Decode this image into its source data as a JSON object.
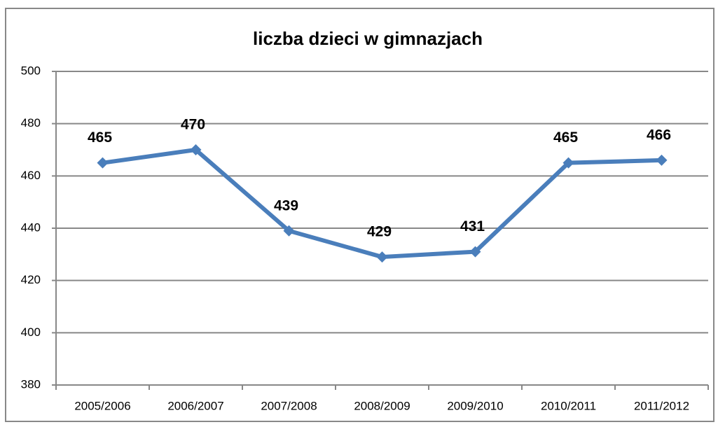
{
  "chart_data": {
    "type": "line",
    "title": "liczba dzieci w gimnazjach",
    "categories": [
      "2005/2006",
      "2006/2007",
      "2007/2008",
      "2008/2009",
      "2009/2010",
      "2010/2011",
      "2011/2012"
    ],
    "series": [
      {
        "name": "liczba dzieci",
        "color": "#4a7ebb",
        "values": [
          465,
          470,
          439,
          429,
          431,
          465,
          466
        ]
      }
    ],
    "ylim": [
      380,
      500
    ],
    "yticks": [
      380,
      400,
      420,
      440,
      460,
      480,
      500
    ],
    "grid": true
  }
}
